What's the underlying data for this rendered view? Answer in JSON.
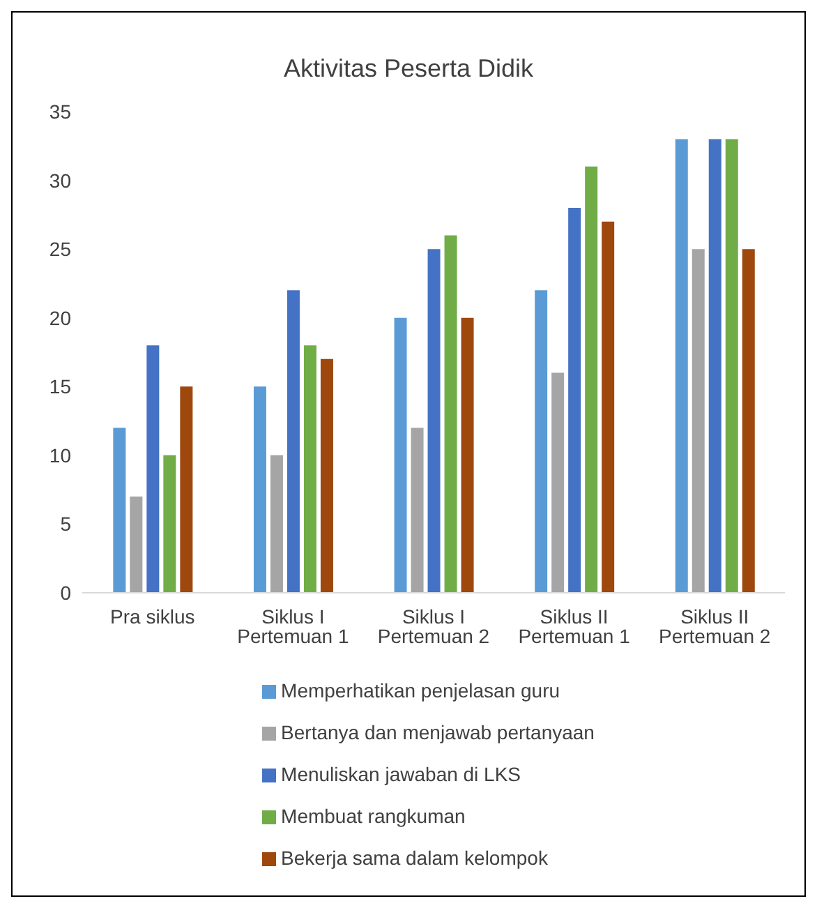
{
  "chart_data": {
    "type": "bar",
    "title": "Aktivitas Peserta Didik",
    "categories": [
      "Pra siklus",
      "Siklus I Pertemuan 1",
      "Siklus I Pertemuan 2",
      "Siklus II Pertemuan 1",
      "Siklus II Pertemuan 2"
    ],
    "series": [
      {
        "name": "Memperhatikan penjelasan guru",
        "color": "#5b9bd5",
        "values": [
          12,
          15,
          20,
          22,
          33
        ]
      },
      {
        "name": "Bertanya dan menjawab pertanyaan",
        "color": "#a5a5a5",
        "values": [
          7,
          10,
          12,
          16,
          25
        ]
      },
      {
        "name": "Menuliskan jawaban di LKS",
        "color": "#4472c4",
        "values": [
          18,
          22,
          25,
          28,
          33
        ]
      },
      {
        "name": "Membuat rangkuman",
        "color": "#70ad47",
        "values": [
          10,
          18,
          26,
          31,
          33
        ]
      },
      {
        "name": "Bekerja sama dalam kelompok",
        "color": "#9e480e",
        "values": [
          15,
          17,
          20,
          27,
          25
        ]
      }
    ],
    "ylim": [
      0,
      35
    ],
    "yticks": [
      0,
      5,
      10,
      15,
      20,
      25,
      30,
      35
    ],
    "legend": "bottom"
  }
}
